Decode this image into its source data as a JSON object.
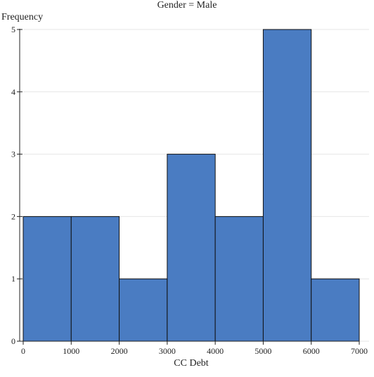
{
  "chart_data": {
    "type": "bar",
    "title": "Gender = Male",
    "xlabel": "CC Debt",
    "ylabel": "Frequency",
    "bins": [
      {
        "from": 0,
        "to": 1000,
        "count": 2
      },
      {
        "from": 1000,
        "to": 2000,
        "count": 2
      },
      {
        "from": 2000,
        "to": 3000,
        "count": 1
      },
      {
        "from": 3000,
        "to": 4000,
        "count": 3
      },
      {
        "from": 4000,
        "to": 5000,
        "count": 2
      },
      {
        "from": 5000,
        "to": 6000,
        "count": 5
      },
      {
        "from": 6000,
        "to": 7000,
        "count": 1
      }
    ],
    "xlim": [
      0,
      7000
    ],
    "ylim": [
      0,
      5
    ],
    "x_ticks": [
      "0",
      "1000",
      "2000",
      "3000",
      "4000",
      "5000",
      "6000",
      "7000"
    ],
    "y_ticks": [
      "0",
      "1",
      "2",
      "3",
      "4",
      "5"
    ],
    "grid": true,
    "colors": {
      "bar_fill": "#4a7cc2",
      "bar_stroke": "#111111",
      "grid": "#e6e6e6",
      "axis": "#222222"
    }
  }
}
